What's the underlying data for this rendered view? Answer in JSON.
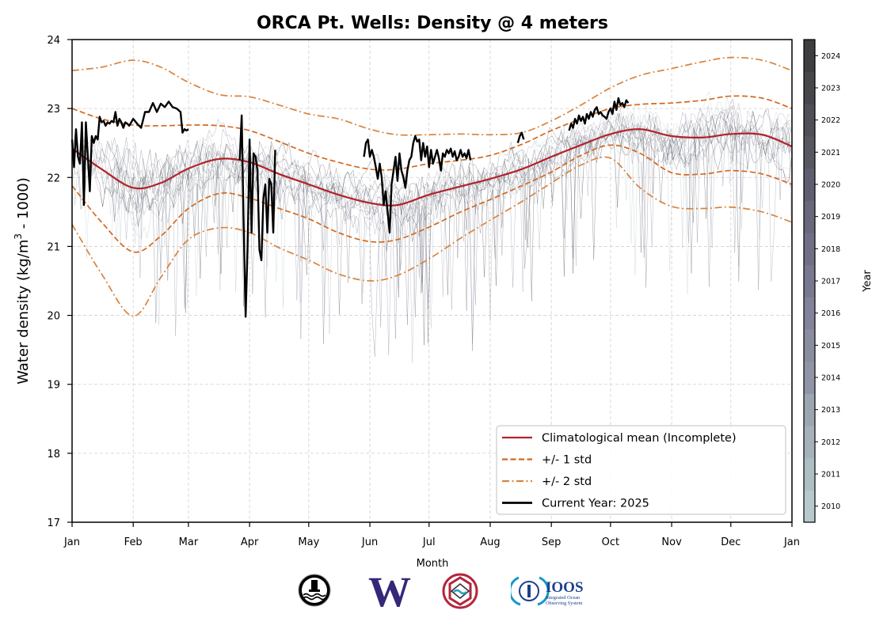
{
  "chart_data": {
    "type": "line",
    "title": "ORCA Pt. Wells: Density @ 4 meters",
    "xlabel": "Month",
    "ylabel": "Water density (kg/m³ - 1000)",
    "ylabel_parts": {
      "main": "Water density (kg/m",
      "sup": "3",
      "tail": " - 1000)"
    },
    "ylim": [
      17,
      24
    ],
    "yticks": [
      17,
      18,
      19,
      20,
      21,
      22,
      23,
      24
    ],
    "xlim_day_of_year": [
      0,
      365
    ],
    "xticks": [
      {
        "label": "Jan",
        "day": 0
      },
      {
        "label": "Feb",
        "day": 31
      },
      {
        "label": "Mar",
        "day": 59
      },
      {
        "label": "Apr",
        "day": 90
      },
      {
        "label": "May",
        "day": 120
      },
      {
        "label": "Jun",
        "day": 151
      },
      {
        "label": "Jul",
        "day": 181
      },
      {
        "label": "Aug",
        "day": 212
      },
      {
        "label": "Sep",
        "day": 243
      },
      {
        "label": "Oct",
        "day": 273
      },
      {
        "label": "Nov",
        "day": 304
      },
      {
        "label": "Dec",
        "day": 334
      },
      {
        "label": "Jan",
        "day": 365
      }
    ],
    "grid": true,
    "legend_position": "lower-right",
    "series": [
      {
        "name": "Climatological mean (Incomplete)",
        "style": "solid",
        "color": "#b2222a",
        "x": [
          0,
          15,
          31,
          45,
          59,
          75,
          90,
          105,
          120,
          135,
          151,
          165,
          181,
          197,
          212,
          228,
          243,
          258,
          273,
          288,
          304,
          320,
          334,
          350,
          365
        ],
        "y": [
          22.42,
          22.12,
          21.85,
          21.92,
          22.13,
          22.27,
          22.22,
          22.05,
          21.9,
          21.75,
          21.63,
          21.6,
          21.75,
          21.87,
          21.98,
          22.12,
          22.3,
          22.47,
          22.63,
          22.7,
          22.6,
          22.58,
          22.63,
          22.62,
          22.45
        ]
      },
      {
        "name": "+1 std",
        "style": "dashed",
        "color": "#d2691e",
        "x": [
          0,
          15,
          31,
          45,
          59,
          75,
          90,
          105,
          120,
          135,
          151,
          165,
          181,
          197,
          212,
          228,
          243,
          258,
          273,
          288,
          304,
          320,
          334,
          350,
          365
        ],
        "y": [
          23.0,
          22.85,
          22.76,
          22.75,
          22.76,
          22.75,
          22.68,
          22.52,
          22.35,
          22.22,
          22.12,
          22.12,
          22.2,
          22.25,
          22.32,
          22.48,
          22.68,
          22.85,
          23.0,
          23.06,
          23.08,
          23.12,
          23.18,
          23.15,
          23.0
        ]
      },
      {
        "name": "-1 std",
        "style": "dashed",
        "color": "#d2691e",
        "x": [
          0,
          15,
          31,
          45,
          59,
          75,
          90,
          105,
          120,
          135,
          151,
          165,
          181,
          197,
          212,
          228,
          243,
          258,
          273,
          288,
          304,
          320,
          334,
          350,
          365
        ],
        "y": [
          21.88,
          21.35,
          20.92,
          21.15,
          21.55,
          21.77,
          21.7,
          21.55,
          21.4,
          21.2,
          21.07,
          21.1,
          21.28,
          21.5,
          21.68,
          21.88,
          22.08,
          22.32,
          22.47,
          22.35,
          22.07,
          22.05,
          22.1,
          22.05,
          21.9
        ]
      },
      {
        "name": "+2 std",
        "style": "dashdot",
        "color": "#d8843e",
        "x": [
          0,
          15,
          31,
          45,
          59,
          75,
          90,
          105,
          120,
          135,
          151,
          165,
          181,
          197,
          212,
          228,
          243,
          258,
          273,
          288,
          304,
          320,
          334,
          350,
          365
        ],
        "y": [
          23.55,
          23.6,
          23.7,
          23.6,
          23.38,
          23.2,
          23.17,
          23.05,
          22.92,
          22.85,
          22.7,
          22.62,
          22.62,
          22.63,
          22.62,
          22.65,
          22.82,
          23.05,
          23.3,
          23.48,
          23.58,
          23.68,
          23.74,
          23.7,
          23.55
        ]
      },
      {
        "name": "-2 std",
        "style": "dashdot",
        "color": "#d8843e",
        "x": [
          0,
          15,
          31,
          45,
          59,
          75,
          90,
          105,
          120,
          135,
          151,
          165,
          181,
          197,
          212,
          228,
          243,
          258,
          273,
          288,
          304,
          320,
          334,
          350,
          365
        ],
        "y": [
          21.32,
          20.6,
          19.99,
          20.55,
          21.1,
          21.27,
          21.2,
          20.98,
          20.8,
          20.6,
          20.5,
          20.58,
          20.82,
          21.12,
          21.38,
          21.65,
          21.92,
          22.18,
          22.28,
          21.85,
          21.58,
          21.55,
          21.57,
          21.5,
          21.35
        ]
      },
      {
        "name": "Current Year: 2025",
        "style": "solid",
        "color": "#000000",
        "segments": [
          {
            "x": [
              0,
              1,
              2,
              3,
              4,
              5,
              6,
              7,
              8,
              9,
              10,
              11,
              12,
              13,
              14,
              15,
              16,
              17,
              18,
              19,
              20,
              21,
              22,
              23,
              24,
              25,
              26,
              27,
              28,
              29,
              30,
              31,
              33,
              35,
              37,
              39,
              41,
              43,
              45,
              47,
              49,
              51,
              53,
              55,
              56,
              57,
              58,
              59
            ],
            "y": [
              22.55,
              22.15,
              22.7,
              22.3,
              22.2,
              22.8,
              21.6,
              22.8,
              22.3,
              21.8,
              22.6,
              22.5,
              22.6,
              22.55,
              22.88,
              22.8,
              22.82,
              22.75,
              22.8,
              22.78,
              22.82,
              22.8,
              22.95,
              22.75,
              22.85,
              22.8,
              22.72,
              22.8,
              22.78,
              22.75,
              22.8,
              22.85,
              22.78,
              22.72,
              22.95,
              22.95,
              23.08,
              22.95,
              23.07,
              23.02,
              23.1,
              23.02,
              23.0,
              22.95,
              22.65,
              22.7,
              22.68,
              22.7
            ]
          },
          {
            "x": [
              85,
              86,
              87,
              88,
              89,
              90,
              91,
              92,
              93,
              94,
              95,
              96,
              97,
              98,
              99,
              100,
              101,
              102,
              103
            ],
            "y": [
              22.25,
              22.9,
              21.3,
              19.98,
              21.0,
              22.55,
              21.2,
              22.35,
              22.3,
              22.1,
              20.95,
              20.8,
              21.7,
              21.9,
              21.2,
              21.98,
              21.9,
              21.2,
              22.4
            ]
          },
          {
            "x": [
              148,
              149,
              150,
              151,
              152,
              153,
              154,
              155,
              156,
              157,
              158,
              159,
              160,
              161,
              162,
              163,
              164,
              165,
              166,
              167,
              168,
              169,
              170,
              171,
              172,
              173,
              174,
              175,
              176,
              177,
              178,
              179,
              180,
              181,
              182,
              183,
              184,
              185,
              186,
              187,
              188,
              189,
              190,
              191,
              192,
              193,
              194,
              195,
              196,
              197,
              198,
              199,
              200,
              201,
              202
            ],
            "y": [
              22.3,
              22.5,
              22.55,
              22.3,
              22.4,
              22.3,
              22.15,
              21.98,
              22.2,
              22.0,
              21.6,
              21.8,
              21.5,
              21.2,
              21.9,
              22.1,
              22.3,
              21.95,
              22.35,
              22.1,
              22.0,
              21.85,
              22.1,
              22.25,
              22.3,
              22.5,
              22.6,
              22.52,
              22.55,
              22.25,
              22.5,
              22.3,
              22.45,
              22.15,
              22.4,
              22.2,
              22.3,
              22.4,
              22.28,
              22.1,
              22.35,
              22.3,
              22.4,
              22.35,
              22.42,
              22.3,
              22.38,
              22.25,
              22.3,
              22.4,
              22.3,
              22.35,
              22.28,
              22.4,
              22.25
            ]
          },
          {
            "x": [
              226,
              227,
              228,
              229
            ],
            "y": [
              22.5,
              22.6,
              22.65,
              22.55
            ]
          },
          {
            "x": [
              252,
              253,
              254,
              255,
              256,
              257,
              258,
              259,
              260,
              261,
              262,
              263,
              264,
              265,
              266,
              267,
              268,
              269,
              270,
              271,
              272,
              273,
              274,
              275,
              276,
              277,
              278,
              279,
              280,
              281,
              282
            ],
            "y": [
              22.68,
              22.78,
              22.72,
              22.85,
              22.78,
              22.9,
              22.82,
              22.88,
              22.78,
              22.92,
              22.85,
              22.95,
              22.88,
              22.98,
              23.02,
              22.92,
              22.95,
              22.9,
              22.88,
              22.85,
              22.95,
              23.0,
              22.92,
              23.1,
              22.98,
              23.15,
              23.05,
              23.08,
              23.02,
              23.12,
              23.08
            ]
          }
        ]
      }
    ],
    "historical_years": {
      "years": [
        2010,
        2011,
        2012,
        2013,
        2014,
        2015,
        2016,
        2017,
        2018,
        2019,
        2020,
        2021,
        2022,
        2023,
        2024
      ],
      "description": "Thin lines, one per year, colored by year (colorbar)"
    },
    "colorbar": {
      "label": "Year",
      "ticks": [
        2010,
        2011,
        2012,
        2013,
        2014,
        2015,
        2016,
        2017,
        2018,
        2019,
        2020,
        2021,
        2022,
        2023,
        2024
      ],
      "colors": [
        "#b7c9cc",
        "#adbfc3",
        "#a5b2b9",
        "#9ca6b1",
        "#9194a7",
        "#8a8ca0",
        "#82839a",
        "#797891",
        "#716f87",
        "#68677c",
        "#5f5e70",
        "#57575f",
        "#4f4f55",
        "#46464b",
        "#3e3e40"
      ]
    },
    "legend": [
      {
        "label": "Climatological mean (Incomplete)",
        "style": "solid",
        "color": "#b2222a"
      },
      {
        "label": "+/- 1 std",
        "style": "dashed",
        "color": "#d2691e"
      },
      {
        "label": "+/- 2 std",
        "style": "dashdot",
        "color": "#d8843e"
      },
      {
        "label": "Current Year: 2025",
        "style": "solid",
        "color": "#000000"
      }
    ]
  },
  "logos": [
    {
      "name": "orca-buoy-logo"
    },
    {
      "name": "uw-logo",
      "text": "W"
    },
    {
      "name": "nanoos-logo"
    },
    {
      "name": "ioos-logo",
      "text": "IOOS",
      "subtext": [
        "Integrated Ocean",
        "Observing System"
      ]
    }
  ]
}
